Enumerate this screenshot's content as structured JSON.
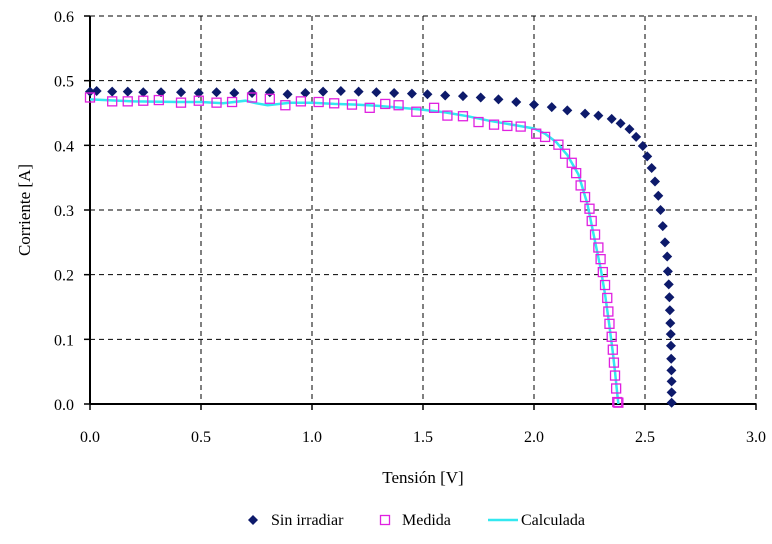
{
  "chart_data": {
    "type": "scatter",
    "title": "",
    "xlabel": "Tensión [V]",
    "ylabel": "Corriente [A]",
    "xlim": [
      0,
      3
    ],
    "ylim": [
      0,
      0.6
    ],
    "xticks": [
      "0.0",
      "0.5",
      "1.0",
      "1.5",
      "2.0",
      "2.5",
      "3.0"
    ],
    "yticks": [
      "0.0",
      "0.1",
      "0.2",
      "0.3",
      "0.4",
      "0.5",
      "0.6"
    ],
    "grid": true,
    "legend_position": "bottom",
    "series": [
      {
        "name": "Sin irradiar",
        "marker": "diamond",
        "color": "#0d1a6b",
        "points": [
          [
            0.0,
            0.483
          ],
          [
            0.03,
            0.484
          ],
          [
            0.1,
            0.483
          ],
          [
            0.17,
            0.483
          ],
          [
            0.24,
            0.482
          ],
          [
            0.32,
            0.482
          ],
          [
            0.41,
            0.482
          ],
          [
            0.49,
            0.481
          ],
          [
            0.57,
            0.482
          ],
          [
            0.65,
            0.481
          ],
          [
            0.73,
            0.481
          ],
          [
            0.81,
            0.482
          ],
          [
            0.89,
            0.479
          ],
          [
            0.97,
            0.481
          ],
          [
            1.05,
            0.483
          ],
          [
            1.13,
            0.484
          ],
          [
            1.21,
            0.483
          ],
          [
            1.29,
            0.482
          ],
          [
            1.37,
            0.481
          ],
          [
            1.45,
            0.48
          ],
          [
            1.52,
            0.479
          ],
          [
            1.6,
            0.477
          ],
          [
            1.68,
            0.476
          ],
          [
            1.76,
            0.474
          ],
          [
            1.84,
            0.471
          ],
          [
            1.92,
            0.467
          ],
          [
            2.0,
            0.463
          ],
          [
            2.08,
            0.459
          ],
          [
            2.15,
            0.454
          ],
          [
            2.23,
            0.449
          ],
          [
            2.29,
            0.446
          ],
          [
            2.35,
            0.441
          ],
          [
            2.39,
            0.434
          ],
          [
            2.43,
            0.425
          ],
          [
            2.46,
            0.413
          ],
          [
            2.49,
            0.399
          ],
          [
            2.51,
            0.383
          ],
          [
            2.53,
            0.365
          ],
          [
            2.545,
            0.344
          ],
          [
            2.56,
            0.322
          ],
          [
            2.57,
            0.3
          ],
          [
            2.58,
            0.275
          ],
          [
            2.59,
            0.25
          ],
          [
            2.6,
            0.228
          ],
          [
            2.603,
            0.205
          ],
          [
            2.607,
            0.185
          ],
          [
            2.61,
            0.165
          ],
          [
            2.612,
            0.145
          ],
          [
            2.614,
            0.125
          ],
          [
            2.616,
            0.108
          ],
          [
            2.617,
            0.09
          ],
          [
            2.618,
            0.07
          ],
          [
            2.619,
            0.052
          ],
          [
            2.62,
            0.035
          ],
          [
            2.62,
            0.018
          ],
          [
            2.62,
            0.002
          ]
        ]
      },
      {
        "name": "Medida",
        "marker": "square",
        "color": "#e020e0",
        "points": [
          [
            0.0,
            0.474
          ],
          [
            0.1,
            0.468
          ],
          [
            0.17,
            0.468
          ],
          [
            0.24,
            0.469
          ],
          [
            0.31,
            0.47
          ],
          [
            0.41,
            0.466
          ],
          [
            0.49,
            0.469
          ],
          [
            0.57,
            0.466
          ],
          [
            0.64,
            0.467
          ],
          [
            0.73,
            0.474
          ],
          [
            0.81,
            0.472
          ],
          [
            0.88,
            0.462
          ],
          [
            0.95,
            0.468
          ],
          [
            1.03,
            0.467
          ],
          [
            1.1,
            0.465
          ],
          [
            1.18,
            0.463
          ],
          [
            1.26,
            0.458
          ],
          [
            1.33,
            0.464
          ],
          [
            1.39,
            0.462
          ],
          [
            1.47,
            0.452
          ],
          [
            1.55,
            0.458
          ],
          [
            1.61,
            0.446
          ],
          [
            1.68,
            0.445
          ],
          [
            1.75,
            0.436
          ],
          [
            1.82,
            0.432
          ],
          [
            1.88,
            0.43
          ],
          [
            1.94,
            0.429
          ],
          [
            2.01,
            0.418
          ],
          [
            2.05,
            0.413
          ],
          [
            2.11,
            0.401
          ],
          [
            2.14,
            0.387
          ],
          [
            2.17,
            0.373
          ],
          [
            2.19,
            0.357
          ],
          [
            2.21,
            0.338
          ],
          [
            2.23,
            0.32
          ],
          [
            2.25,
            0.302
          ],
          [
            2.26,
            0.283
          ],
          [
            2.275,
            0.262
          ],
          [
            2.29,
            0.242
          ],
          [
            2.3,
            0.224
          ],
          [
            2.31,
            0.204
          ],
          [
            2.32,
            0.184
          ],
          [
            2.33,
            0.164
          ],
          [
            2.335,
            0.143
          ],
          [
            2.34,
            0.124
          ],
          [
            2.35,
            0.104
          ],
          [
            2.355,
            0.084
          ],
          [
            2.36,
            0.064
          ],
          [
            2.365,
            0.044
          ],
          [
            2.37,
            0.024
          ],
          [
            2.375,
            0.003
          ],
          [
            2.38,
            0.002
          ]
        ]
      },
      {
        "name": "Calculada",
        "marker": "line",
        "color": "#33e8f0",
        "points": [
          [
            0.0,
            0.471
          ],
          [
            0.2,
            0.468
          ],
          [
            0.4,
            0.467
          ],
          [
            0.5,
            0.467
          ],
          [
            0.6,
            0.465
          ],
          [
            0.7,
            0.469
          ],
          [
            0.75,
            0.465
          ],
          [
            0.8,
            0.462
          ],
          [
            0.9,
            0.466
          ],
          [
            1.0,
            0.466
          ],
          [
            1.1,
            0.464
          ],
          [
            1.2,
            0.463
          ],
          [
            1.3,
            0.461
          ],
          [
            1.4,
            0.458
          ],
          [
            1.5,
            0.455
          ],
          [
            1.6,
            0.451
          ],
          [
            1.7,
            0.445
          ],
          [
            1.8,
            0.438
          ],
          [
            1.9,
            0.432
          ],
          [
            2.0,
            0.426
          ],
          [
            2.05,
            0.418
          ],
          [
            2.1,
            0.405
          ],
          [
            2.15,
            0.385
          ],
          [
            2.2,
            0.355
          ],
          [
            2.24,
            0.31
          ],
          [
            2.27,
            0.26
          ],
          [
            2.3,
            0.21
          ],
          [
            2.32,
            0.17
          ],
          [
            2.34,
            0.12
          ],
          [
            2.355,
            0.08
          ],
          [
            2.365,
            0.05
          ],
          [
            2.375,
            0.015
          ],
          [
            2.38,
            0.0
          ]
        ]
      }
    ]
  }
}
